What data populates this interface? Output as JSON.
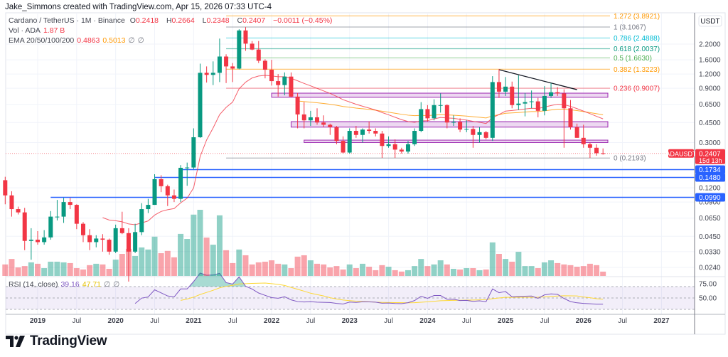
{
  "header": {
    "credit": "Jake_Simmons created with TradingView.com, Apr 15, 2026 07:33 UTC-4",
    "symbol": "Cardano / TetherUS · 1M · Binance",
    "ohlc": {
      "o_label": "O",
      "o": "0.2418",
      "h_label": "H",
      "h": "0.2664",
      "l_label": "L",
      "l": "0.2348",
      "c_label": "C",
      "c": "0.2407",
      "change": "−0.0011 (−0.45%)"
    },
    "volume": {
      "label": "Vol · ADA",
      "value": "1.87 B"
    },
    "ema": {
      "label": "EMA 20/50/100/200",
      "v20": "0.4863",
      "v50": "0.5013",
      "v100": "∅",
      "v200": "∅"
    },
    "rsi": {
      "label": "RSI (14, close)",
      "value": "39.16",
      "ma": "47.71",
      "extra1": "∅",
      "extra2": "∅"
    }
  },
  "colors": {
    "up": "#089981",
    "down": "#f23645",
    "ema20": "#f23645",
    "ema50": "#ff9800",
    "rsi": "#7e57c2",
    "rsi_ma": "#fdd835",
    "hline": "#2962ff",
    "box_border": "#9c27b0",
    "box_fill": "#e1bee7",
    "trendline": "#131722"
  },
  "price_axis": {
    "currency": "USDT",
    "scale": "log",
    "ticks": [
      "2.2000",
      "1.6000",
      "1.2000",
      "0.9000",
      "0.6500",
      "0.4500",
      "0.3000",
      "0.1200",
      "0.0900",
      "0.0650",
      "0.0450",
      "0.0330",
      "0.0240"
    ],
    "current": {
      "symbol": "ADAUSDT",
      "price": "0.2407",
      "countdown": "15d 13h"
    },
    "line_tags": [
      "0.1734",
      "0.1480",
      "0.0990"
    ]
  },
  "time_axis": {
    "ticks": [
      {
        "label": "2019",
        "month": "2019-01",
        "bold": true
      },
      {
        "label": "Jul",
        "month": "2019-07"
      },
      {
        "label": "2020",
        "month": "2020-01",
        "bold": true
      },
      {
        "label": "Jul",
        "month": "2020-07"
      },
      {
        "label": "2021",
        "month": "2021-01",
        "bold": true
      },
      {
        "label": "Jul",
        "month": "2021-07"
      },
      {
        "label": "2022",
        "month": "2022-01",
        "bold": true
      },
      {
        "label": "Jul",
        "month": "2022-07"
      },
      {
        "label": "2023",
        "month": "2023-01",
        "bold": true
      },
      {
        "label": "Jul",
        "month": "2023-07"
      },
      {
        "label": "2024",
        "month": "2024-01",
        "bold": true
      },
      {
        "label": "Jul",
        "month": "2024-07"
      },
      {
        "label": "2025",
        "month": "2025-01",
        "bold": true
      },
      {
        "label": "Jul",
        "month": "2025-07"
      },
      {
        "label": "2026",
        "month": "2026-01",
        "bold": true
      },
      {
        "label": "Jul",
        "month": "2026-07"
      },
      {
        "label": "2027",
        "month": "2027-01",
        "bold": true
      }
    ]
  },
  "rsi_axis": {
    "ticks": [
      "75.00",
      "50.00"
    ],
    "bands": [
      70,
      50,
      30
    ]
  },
  "fibonacci": {
    "start_month": "2021-06",
    "levels": [
      {
        "label": "1.272 (3.8921)",
        "price": 3.8921,
        "color": "#ff9800"
      },
      {
        "label": "1 (3.1067)",
        "price": 3.1067,
        "color": "#787b86"
      },
      {
        "label": "0.786 (2.4888)",
        "price": 2.4888,
        "color": "#00bcd4"
      },
      {
        "label": "0.618 (2.0037)",
        "price": 2.0037,
        "color": "#089981"
      },
      {
        "label": "0.5 (1.6630)",
        "price": 1.663,
        "color": "#4caf50"
      },
      {
        "label": "0.382 (1.3223)",
        "price": 1.3223,
        "color": "#ff9800"
      },
      {
        "label": "0.236 (0.9007)",
        "price": 0.9007,
        "color": "#f23645"
      },
      {
        "label": "0 (0.2193)",
        "price": 0.2193,
        "color": "#787b86"
      }
    ]
  },
  "zones": [
    {
      "from_month": "2022-01",
      "price_high": 0.815,
      "price_low": 0.75
    },
    {
      "from_month": "2022-04",
      "price_high": 0.458,
      "price_low": 0.41
    },
    {
      "from_month": "2022-06",
      "price_high": 0.315,
      "price_low": 0.3
    }
  ],
  "horizontal_lines": [
    {
      "from_month": "2020-11",
      "price": 0.1734
    },
    {
      "from_month": "2020-07",
      "price": 0.148
    },
    {
      "from_month": "2019-03",
      "price": 0.099
    }
  ],
  "trendline": {
    "from": {
      "month": "2024-12",
      "price": 1.31
    },
    "to": {
      "month": "2025-12",
      "price": 0.875
    }
  },
  "brand": {
    "name": "TradingView"
  },
  "chart_data": {
    "type": "candlestick",
    "title": "Cardano / TetherUS · 1M · Binance",
    "yscale": "log",
    "ylim": [
      0.0215,
      4.1
    ],
    "xlim": [
      "2018-08",
      "2027-04"
    ],
    "grid": true,
    "fields": [
      "month",
      "open",
      "high",
      "low",
      "close",
      "volume_billion_ADA"
    ],
    "candles": [
      [
        "2018-08",
        0.14,
        0.15,
        0.086,
        0.103,
        5.0
      ],
      [
        "2018-09",
        0.103,
        0.112,
        0.067,
        0.078,
        7.4
      ],
      [
        "2018-10",
        0.078,
        0.082,
        0.07,
        0.073,
        3.7
      ],
      [
        "2018-11",
        0.073,
        0.08,
        0.034,
        0.041,
        4.3
      ],
      [
        "2018-12",
        0.041,
        0.053,
        0.028,
        0.042,
        5.9
      ],
      [
        "2019-01",
        0.042,
        0.05,
        0.038,
        0.04,
        5.3
      ],
      [
        "2019-02",
        0.04,
        0.051,
        0.038,
        0.044,
        3.4
      ],
      [
        "2019-03",
        0.044,
        0.075,
        0.042,
        0.067,
        6.2
      ],
      [
        "2019-04",
        0.067,
        0.094,
        0.062,
        0.067,
        6.2
      ],
      [
        "2019-05",
        0.067,
        0.098,
        0.059,
        0.09,
        5.9
      ],
      [
        "2019-06",
        0.09,
        0.098,
        0.078,
        0.085,
        5.6
      ],
      [
        "2019-07",
        0.085,
        0.086,
        0.052,
        0.058,
        3.4
      ],
      [
        "2019-08",
        0.058,
        0.06,
        0.04,
        0.046,
        2.8
      ],
      [
        "2019-09",
        0.046,
        0.052,
        0.034,
        0.04,
        4.7
      ],
      [
        "2019-10",
        0.04,
        0.046,
        0.036,
        0.043,
        5.3
      ],
      [
        "2019-11",
        0.043,
        0.047,
        0.033,
        0.042,
        5.0
      ],
      [
        "2019-12",
        0.042,
        0.043,
        0.031,
        0.033,
        3.1
      ],
      [
        "2020-01",
        0.033,
        0.057,
        0.032,
        0.053,
        7.1
      ],
      [
        "2020-02",
        0.053,
        0.074,
        0.047,
        0.048,
        9.6
      ],
      [
        "2020-03",
        0.048,
        0.053,
        0.018,
        0.033,
        11.8
      ],
      [
        "2020-04",
        0.033,
        0.058,
        0.032,
        0.049,
        8.7
      ],
      [
        "2020-05",
        0.049,
        0.088,
        0.046,
        0.078,
        12.4
      ],
      [
        "2020-06",
        0.078,
        0.096,
        0.072,
        0.085,
        11.5
      ],
      [
        "2020-07",
        0.085,
        0.158,
        0.085,
        0.143,
        17.1
      ],
      [
        "2020-08",
        0.143,
        0.155,
        0.11,
        0.124,
        9.9
      ],
      [
        "2020-09",
        0.124,
        0.128,
        0.083,
        0.103,
        10.9
      ],
      [
        "2020-10",
        0.103,
        0.116,
        0.09,
        0.096,
        8.1
      ],
      [
        "2020-11",
        0.096,
        0.19,
        0.09,
        0.18,
        18.3
      ],
      [
        "2020-12",
        0.18,
        0.2,
        0.125,
        0.181,
        16.1
      ],
      [
        "2021-01",
        0.181,
        0.4,
        0.175,
        0.334,
        26.7
      ],
      [
        "2021-02",
        0.334,
        1.48,
        0.33,
        1.23,
        28.8
      ],
      [
        "2021-03",
        1.23,
        1.4,
        1.01,
        1.18,
        16.7
      ],
      [
        "2021-04",
        1.18,
        1.55,
        0.96,
        1.23,
        13.6
      ],
      [
        "2021-05",
        1.23,
        2.46,
        1.02,
        1.71,
        26.4
      ],
      [
        "2021-06",
        1.71,
        1.79,
        1.0,
        1.4,
        11.2
      ],
      [
        "2021-07",
        1.4,
        1.5,
        1.02,
        1.34,
        5.6
      ],
      [
        "2021-08",
        1.34,
        2.97,
        1.32,
        2.9,
        11.5
      ],
      [
        "2021-09",
        2.9,
        3.1,
        1.92,
        2.22,
        9.0
      ],
      [
        "2021-10",
        2.22,
        2.34,
        1.94,
        1.97,
        5.0
      ],
      [
        "2021-11",
        1.97,
        2.34,
        1.5,
        1.57,
        5.9
      ],
      [
        "2021-12",
        1.57,
        1.62,
        1.1,
        1.31,
        6.2
      ],
      [
        "2022-01",
        1.31,
        1.6,
        0.95,
        1.04,
        6.8
      ],
      [
        "2022-02",
        1.04,
        1.2,
        0.76,
        0.96,
        5.3
      ],
      [
        "2022-03",
        0.96,
        1.24,
        0.78,
        1.14,
        5.0
      ],
      [
        "2022-04",
        1.14,
        1.24,
        0.75,
        0.76,
        3.4
      ],
      [
        "2022-05",
        0.76,
        0.82,
        0.4,
        0.53,
        8.4
      ],
      [
        "2022-06",
        0.53,
        0.68,
        0.4,
        0.47,
        9.0
      ],
      [
        "2022-07",
        0.47,
        0.57,
        0.42,
        0.5,
        6.8
      ],
      [
        "2022-08",
        0.5,
        0.6,
        0.43,
        0.45,
        5.3
      ],
      [
        "2022-09",
        0.45,
        0.52,
        0.41,
        0.43,
        5.0
      ],
      [
        "2022-10",
        0.43,
        0.44,
        0.35,
        0.41,
        3.7
      ],
      [
        "2022-11",
        0.41,
        0.42,
        0.29,
        0.31,
        4.3
      ],
      [
        "2022-12",
        0.31,
        0.34,
        0.24,
        0.245,
        2.8
      ],
      [
        "2023-01",
        0.245,
        0.4,
        0.24,
        0.38,
        5.0
      ],
      [
        "2023-02",
        0.38,
        0.42,
        0.33,
        0.35,
        3.4
      ],
      [
        "2023-03",
        0.35,
        0.4,
        0.3,
        0.39,
        5.3
      ],
      [
        "2023-04",
        0.39,
        0.46,
        0.36,
        0.38,
        4.0
      ],
      [
        "2023-05",
        0.38,
        0.4,
        0.34,
        0.36,
        2.5
      ],
      [
        "2023-06",
        0.36,
        0.38,
        0.22,
        0.28,
        4.7
      ],
      [
        "2023-07",
        0.28,
        0.34,
        0.27,
        0.29,
        4.0
      ],
      [
        "2023-08",
        0.29,
        0.32,
        0.22,
        0.26,
        2.5
      ],
      [
        "2023-09",
        0.26,
        0.27,
        0.24,
        0.25,
        1.9
      ],
      [
        "2023-10",
        0.25,
        0.31,
        0.24,
        0.29,
        2.5
      ],
      [
        "2023-11",
        0.29,
        0.4,
        0.28,
        0.38,
        4.3
      ],
      [
        "2023-12",
        0.38,
        0.68,
        0.37,
        0.59,
        7.4
      ],
      [
        "2024-01",
        0.59,
        0.64,
        0.46,
        0.49,
        4.3
      ],
      [
        "2024-02",
        0.49,
        0.72,
        0.47,
        0.64,
        5.0
      ],
      [
        "2024-03",
        0.64,
        0.81,
        0.55,
        0.64,
        6.8
      ],
      [
        "2024-04",
        0.64,
        0.65,
        0.4,
        0.45,
        5.0
      ],
      [
        "2024-05",
        0.45,
        0.52,
        0.42,
        0.455,
        3.1
      ],
      [
        "2024-06",
        0.455,
        0.49,
        0.37,
        0.39,
        2.8
      ],
      [
        "2024-07",
        0.39,
        0.47,
        0.37,
        0.395,
        3.4
      ],
      [
        "2024-08",
        0.395,
        0.42,
        0.27,
        0.35,
        3.4
      ],
      [
        "2024-09",
        0.35,
        0.41,
        0.3,
        0.37,
        2.5
      ],
      [
        "2024-10",
        0.37,
        0.38,
        0.32,
        0.33,
        2.8
      ],
      [
        "2024-11",
        0.33,
        1.15,
        0.31,
        1.02,
        14.6
      ],
      [
        "2024-12",
        1.02,
        1.33,
        0.74,
        0.84,
        9.6
      ],
      [
        "2025-01",
        0.84,
        1.13,
        0.77,
        0.93,
        7.4
      ],
      [
        "2025-02",
        0.93,
        1.03,
        0.6,
        0.64,
        6.2
      ],
      [
        "2025-03",
        0.64,
        1.17,
        0.58,
        0.66,
        10.5
      ],
      [
        "2025-04",
        0.66,
        0.82,
        0.51,
        0.68,
        4.3
      ],
      [
        "2025-05",
        0.68,
        0.86,
        0.6,
        0.69,
        4.3
      ],
      [
        "2025-06",
        0.69,
        0.74,
        0.5,
        0.57,
        3.4
      ],
      [
        "2025-07",
        0.57,
        0.94,
        0.52,
        0.77,
        5.9
      ],
      [
        "2025-08",
        0.77,
        1.0,
        0.74,
        0.83,
        6.8
      ],
      [
        "2025-09",
        0.83,
        0.92,
        0.77,
        0.81,
        5.6
      ],
      [
        "2025-10",
        0.81,
        0.88,
        0.27,
        0.6,
        5.0
      ],
      [
        "2025-11",
        0.6,
        0.71,
        0.39,
        0.41,
        4.7
      ],
      [
        "2025-12",
        0.41,
        0.44,
        0.33,
        0.33,
        4.0
      ],
      [
        "2026-01",
        0.33,
        0.43,
        0.27,
        0.29,
        4.3
      ],
      [
        "2026-02",
        0.29,
        0.3,
        0.22,
        0.27,
        5.3
      ],
      [
        "2026-03",
        0.27,
        0.29,
        0.23,
        0.2418,
        4.7
      ],
      [
        "2026-04",
        0.2418,
        0.2664,
        0.2348,
        0.2407,
        1.87
      ]
    ]
  }
}
